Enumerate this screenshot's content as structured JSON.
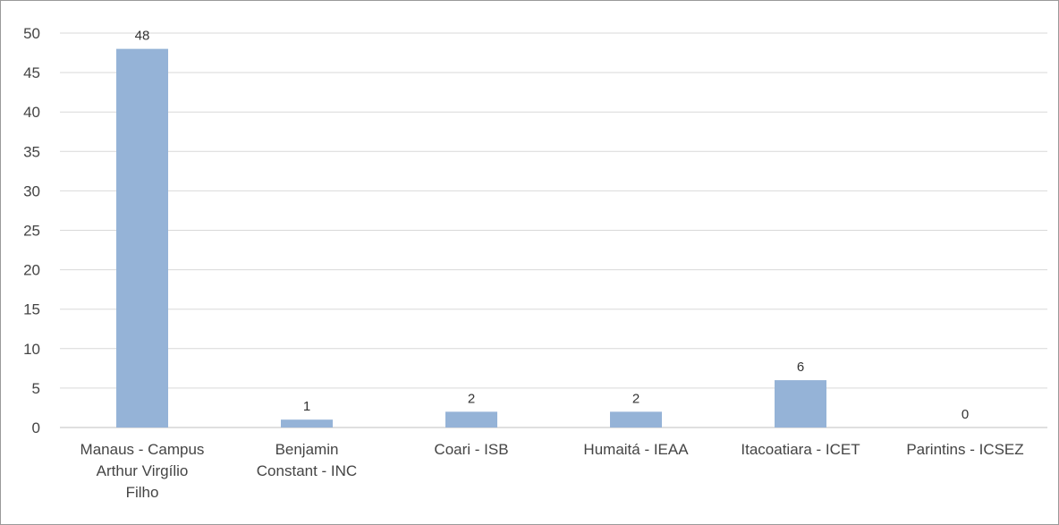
{
  "chart_data": {
    "type": "bar",
    "categories": [
      [
        "Manaus - Campus",
        "Arthur Virgílio",
        "Filho"
      ],
      [
        "Benjamin",
        "Constant - INC"
      ],
      [
        "Coari - ISB"
      ],
      [
        "Humaitá - IEAA"
      ],
      [
        "Itacoatiara - ICET"
      ],
      [
        "Parintins - ICSEZ"
      ]
    ],
    "values": [
      48,
      1,
      2,
      2,
      6,
      0
    ],
    "data_labels": [
      "48",
      "1",
      "2",
      "2",
      "6",
      "0"
    ],
    "ylim": [
      0,
      50
    ],
    "yticks": [
      0,
      5,
      10,
      15,
      20,
      25,
      30,
      35,
      40,
      45,
      50
    ],
    "grid": true,
    "legend": "none",
    "colors": {
      "bar": "#95b3d7",
      "grid": "#d9d9d9",
      "axis": "#bfbfbf"
    }
  }
}
